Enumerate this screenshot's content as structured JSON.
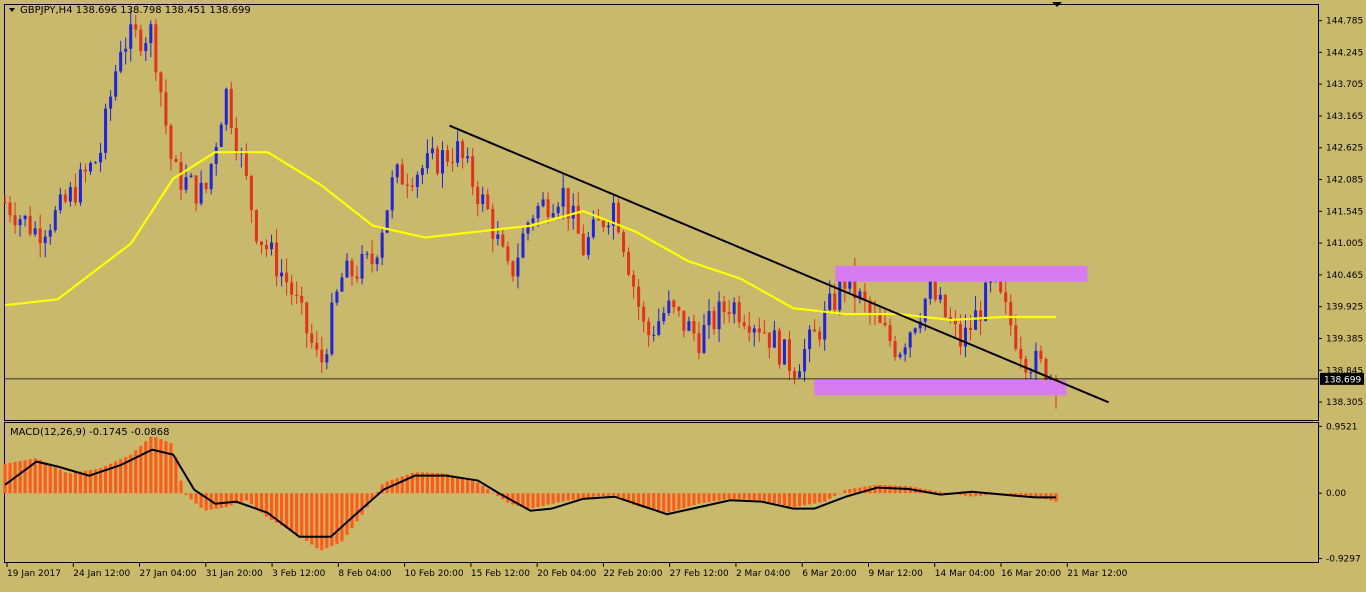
{
  "header": {
    "symbol_line": "GBPJPY,H4  138.696 138.798 138.451 138.699",
    "macd_line": "MACD(12,26,9) -0.1745 -0.0868"
  },
  "colors": {
    "background": "#c8b96c",
    "bull_candle": "#1f25d8",
    "bear_candle": "#e0321c",
    "moving_average": "#ffff00",
    "trendline": "#000000",
    "zone": "#d77cf0",
    "macd_histogram": "#ff5a1a",
    "macd_signal": "#000000",
    "price_label_bg": "#000000"
  },
  "chart_data": [
    {
      "type": "candlestick",
      "symbol": "GBPJPY",
      "timeframe": "H4",
      "ylim": [
        138.0,
        145.05
      ],
      "yticks": [
        "144.785",
        "144.245",
        "143.705",
        "143.165",
        "142.625",
        "142.085",
        "141.545",
        "141.005",
        "140.465",
        "139.925",
        "139.385",
        "138.845",
        "138.305"
      ],
      "current_price": "138.699",
      "xticks": [
        "19 Jan 2017",
        "24 Jan 12:00",
        "27 Jan 04:00",
        "31 Jan 20:00",
        "3 Feb 12:00",
        "8 Feb 04:00",
        "10 Feb 20:00",
        "15 Feb 12:00",
        "20 Feb 04:00",
        "22 Feb 20:00",
        "27 Feb 12:00",
        "2 Mar 04:00",
        "6 Mar 20:00",
        "9 Mar 12:00",
        "14 Mar 04:00",
        "16 Mar 20:00",
        "21 Mar 12:00"
      ],
      "close_path": [
        [
          0,
          141.7
        ],
        [
          0.03,
          141.2
        ],
        [
          0.05,
          141.5
        ],
        [
          0.09,
          142.5
        ],
        [
          0.11,
          144.4
        ],
        [
          0.14,
          144.6
        ],
        [
          0.16,
          142.2
        ],
        [
          0.19,
          141.8
        ],
        [
          0.21,
          143.6
        ],
        [
          0.24,
          141.2
        ],
        [
          0.27,
          140.3
        ],
        [
          0.3,
          138.9
        ],
        [
          0.32,
          140.4
        ],
        [
          0.35,
          140.7
        ],
        [
          0.37,
          142.1
        ],
        [
          0.4,
          142.3
        ],
        [
          0.43,
          142.6
        ],
        [
          0.46,
          141.5
        ],
        [
          0.48,
          140.4
        ],
        [
          0.5,
          141.5
        ],
        [
          0.53,
          141.9
        ],
        [
          0.55,
          140.9
        ],
        [
          0.58,
          141.7
        ],
        [
          0.61,
          139.4
        ],
        [
          0.63,
          139.9
        ],
        [
          0.66,
          139.4
        ],
        [
          0.69,
          140.0
        ],
        [
          0.72,
          139.6
        ],
        [
          0.75,
          138.9
        ],
        [
          0.77,
          139.4
        ],
        [
          0.8,
          140.4
        ],
        [
          0.83,
          139.6
        ],
        [
          0.85,
          139.2
        ],
        [
          0.88,
          140.2
        ],
        [
          0.91,
          139.3
        ],
        [
          0.94,
          140.3
        ],
        [
          0.97,
          139.1
        ],
        [
          1.0,
          138.7
        ]
      ],
      "moving_average": [
        [
          0,
          139.95
        ],
        [
          0.05,
          140.05
        ],
        [
          0.12,
          141.0
        ],
        [
          0.16,
          142.1
        ],
        [
          0.2,
          142.55
        ],
        [
          0.25,
          142.55
        ],
        [
          0.3,
          142.0
        ],
        [
          0.35,
          141.3
        ],
        [
          0.4,
          141.1
        ],
        [
          0.5,
          141.3
        ],
        [
          0.55,
          141.55
        ],
        [
          0.6,
          141.2
        ],
        [
          0.65,
          140.7
        ],
        [
          0.7,
          140.4
        ],
        [
          0.75,
          139.9
        ],
        [
          0.8,
          139.8
        ],
        [
          0.85,
          139.8
        ],
        [
          0.9,
          139.7
        ],
        [
          0.95,
          139.75
        ],
        [
          1.0,
          139.75
        ]
      ],
      "trendline": [
        [
          0.423,
          143.0
        ],
        [
          1.05,
          138.3
        ]
      ],
      "zones": [
        {
          "x": [
            0.79,
            1.03
          ],
          "y": [
            140.35,
            140.62
          ]
        },
        {
          "x": [
            0.77,
            1.01
          ],
          "y": [
            138.42,
            138.68
          ]
        }
      ]
    },
    {
      "type": "macd",
      "title": "MACD(12,26,9) -0.1745 -0.0868",
      "ylim": [
        -0.98,
        1.0
      ],
      "yticks": [
        "0.9521",
        "0.00",
        "-0.9297"
      ],
      "histogram": [
        [
          0,
          0.42
        ],
        [
          0.03,
          0.5
        ],
        [
          0.06,
          0.28
        ],
        [
          0.09,
          0.35
        ],
        [
          0.12,
          0.55
        ],
        [
          0.14,
          0.82
        ],
        [
          0.16,
          0.7
        ],
        [
          0.17,
          0.0
        ],
        [
          0.19,
          -0.25
        ],
        [
          0.21,
          -0.2
        ],
        [
          0.23,
          -0.1
        ],
        [
          0.25,
          -0.35
        ],
        [
          0.28,
          -0.6
        ],
        [
          0.3,
          -0.82
        ],
        [
          0.32,
          -0.7
        ],
        [
          0.34,
          -0.3
        ],
        [
          0.36,
          0.15
        ],
        [
          0.39,
          0.3
        ],
        [
          0.42,
          0.28
        ],
        [
          0.45,
          0.15
        ],
        [
          0.48,
          -0.15
        ],
        [
          0.5,
          -0.22
        ],
        [
          0.53,
          -0.12
        ],
        [
          0.56,
          -0.05
        ],
        [
          0.58,
          -0.03
        ],
        [
          0.6,
          -0.18
        ],
        [
          0.63,
          -0.28
        ],
        [
          0.66,
          -0.15
        ],
        [
          0.69,
          -0.08
        ],
        [
          0.72,
          -0.1
        ],
        [
          0.75,
          -0.2
        ],
        [
          0.78,
          -0.12
        ],
        [
          0.8,
          0.05
        ],
        [
          0.83,
          0.12
        ],
        [
          0.86,
          0.1
        ],
        [
          0.89,
          0.02
        ],
        [
          0.92,
          -0.05
        ],
        [
          0.95,
          0.0
        ],
        [
          0.98,
          -0.05
        ],
        [
          1.0,
          -0.12
        ]
      ],
      "signal": [
        [
          0,
          0.12
        ],
        [
          0.03,
          0.45
        ],
        [
          0.05,
          0.38
        ],
        [
          0.08,
          0.25
        ],
        [
          0.11,
          0.4
        ],
        [
          0.14,
          0.62
        ],
        [
          0.16,
          0.55
        ],
        [
          0.18,
          0.05
        ],
        [
          0.2,
          -0.15
        ],
        [
          0.22,
          -0.12
        ],
        [
          0.25,
          -0.28
        ],
        [
          0.28,
          -0.62
        ],
        [
          0.31,
          -0.62
        ],
        [
          0.33,
          -0.35
        ],
        [
          0.36,
          0.05
        ],
        [
          0.39,
          0.25
        ],
        [
          0.42,
          0.25
        ],
        [
          0.45,
          0.18
        ],
        [
          0.47,
          0.0
        ],
        [
          0.5,
          -0.25
        ],
        [
          0.52,
          -0.22
        ],
        [
          0.55,
          -0.08
        ],
        [
          0.58,
          -0.05
        ],
        [
          0.61,
          -0.2
        ],
        [
          0.63,
          -0.3
        ],
        [
          0.66,
          -0.2
        ],
        [
          0.69,
          -0.1
        ],
        [
          0.72,
          -0.12
        ],
        [
          0.75,
          -0.22
        ],
        [
          0.77,
          -0.22
        ],
        [
          0.8,
          -0.05
        ],
        [
          0.83,
          0.08
        ],
        [
          0.86,
          0.06
        ],
        [
          0.89,
          -0.02
        ],
        [
          0.92,
          0.02
        ],
        [
          0.95,
          -0.02
        ],
        [
          0.98,
          -0.06
        ],
        [
          1.0,
          -0.06
        ]
      ]
    }
  ]
}
